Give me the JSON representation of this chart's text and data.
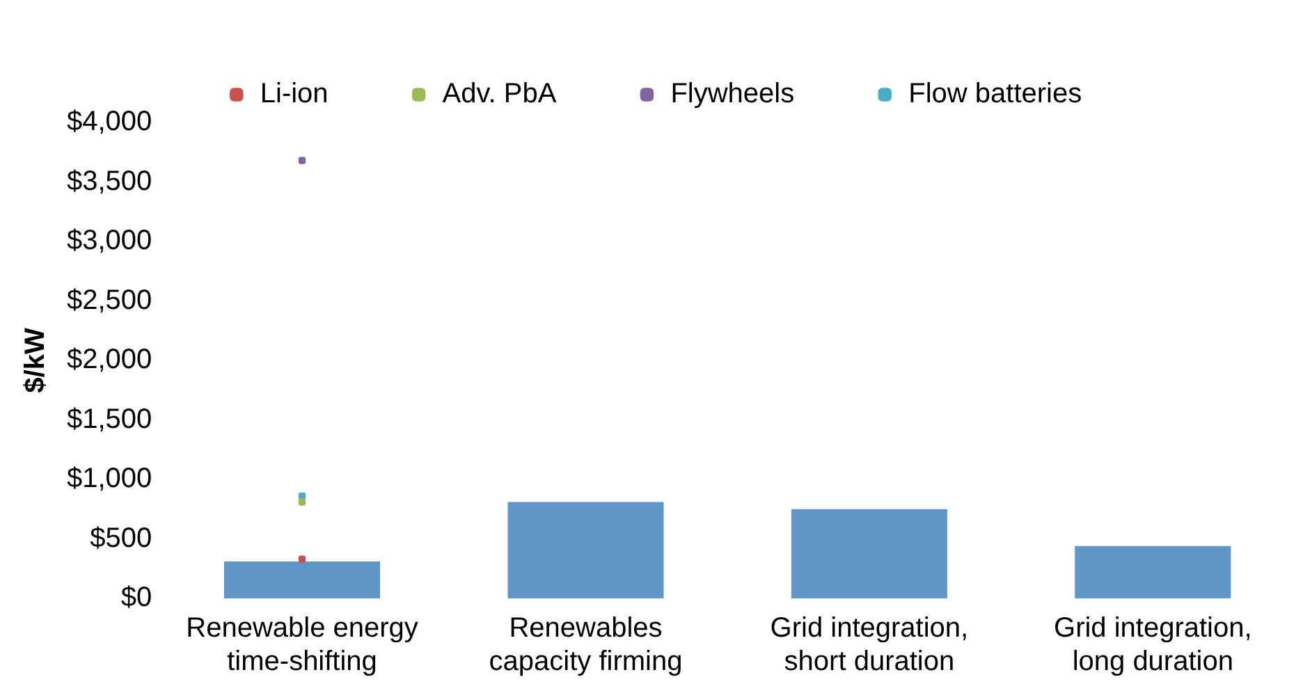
{
  "chart_data": {
    "type": "bar",
    "ylabel": "$/kW",
    "categories": [
      "Renewable energy\ntime-shifting",
      "Renewables\ncapacity firming",
      "Grid integration,\nshort duration",
      "Grid integration,\nlong duration"
    ],
    "series": [
      {
        "color": "#6096c8",
        "values": [
          310,
          810,
          750,
          440
        ]
      },
      {
        "type": "scatter",
        "name": "Li-ion",
        "color": "#c9504b",
        "x": [
          "Renewable energy\ntime-shifting"
        ],
        "values": [
          330
        ]
      },
      {
        "type": "scatter",
        "name": "Adv. PbA",
        "color": "#9bbb59",
        "x": [
          "Renewable energy\ntime-shifting"
        ],
        "values": [
          810
        ]
      },
      {
        "type": "scatter",
        "name": "Flywheels",
        "color": "#8064a2",
        "x": [
          "Renewable energy\ntime-shifting"
        ],
        "values": [
          3680
        ]
      },
      {
        "type": "scatter",
        "name": "Flow batteries",
        "color": "#4bacc6",
        "x": [
          "Renewable energy\ntime-shifting"
        ],
        "values": [
          860
        ]
      }
    ],
    "ylim": [
      0,
      4000
    ],
    "yticks": [
      {
        "value": 0,
        "label": "$0"
      },
      {
        "value": 500,
        "label": "$500"
      },
      {
        "value": 1000,
        "label": "$1,000"
      },
      {
        "value": 1500,
        "label": "$1,500"
      },
      {
        "value": 2000,
        "label": "$2,000"
      },
      {
        "value": 2500,
        "label": "$2,500"
      },
      {
        "value": 3000,
        "label": "$3,000"
      },
      {
        "value": 3500,
        "label": "$3,500"
      },
      {
        "value": 4000,
        "label": "$4,000"
      }
    ],
    "grid": false,
    "legend": "top"
  }
}
